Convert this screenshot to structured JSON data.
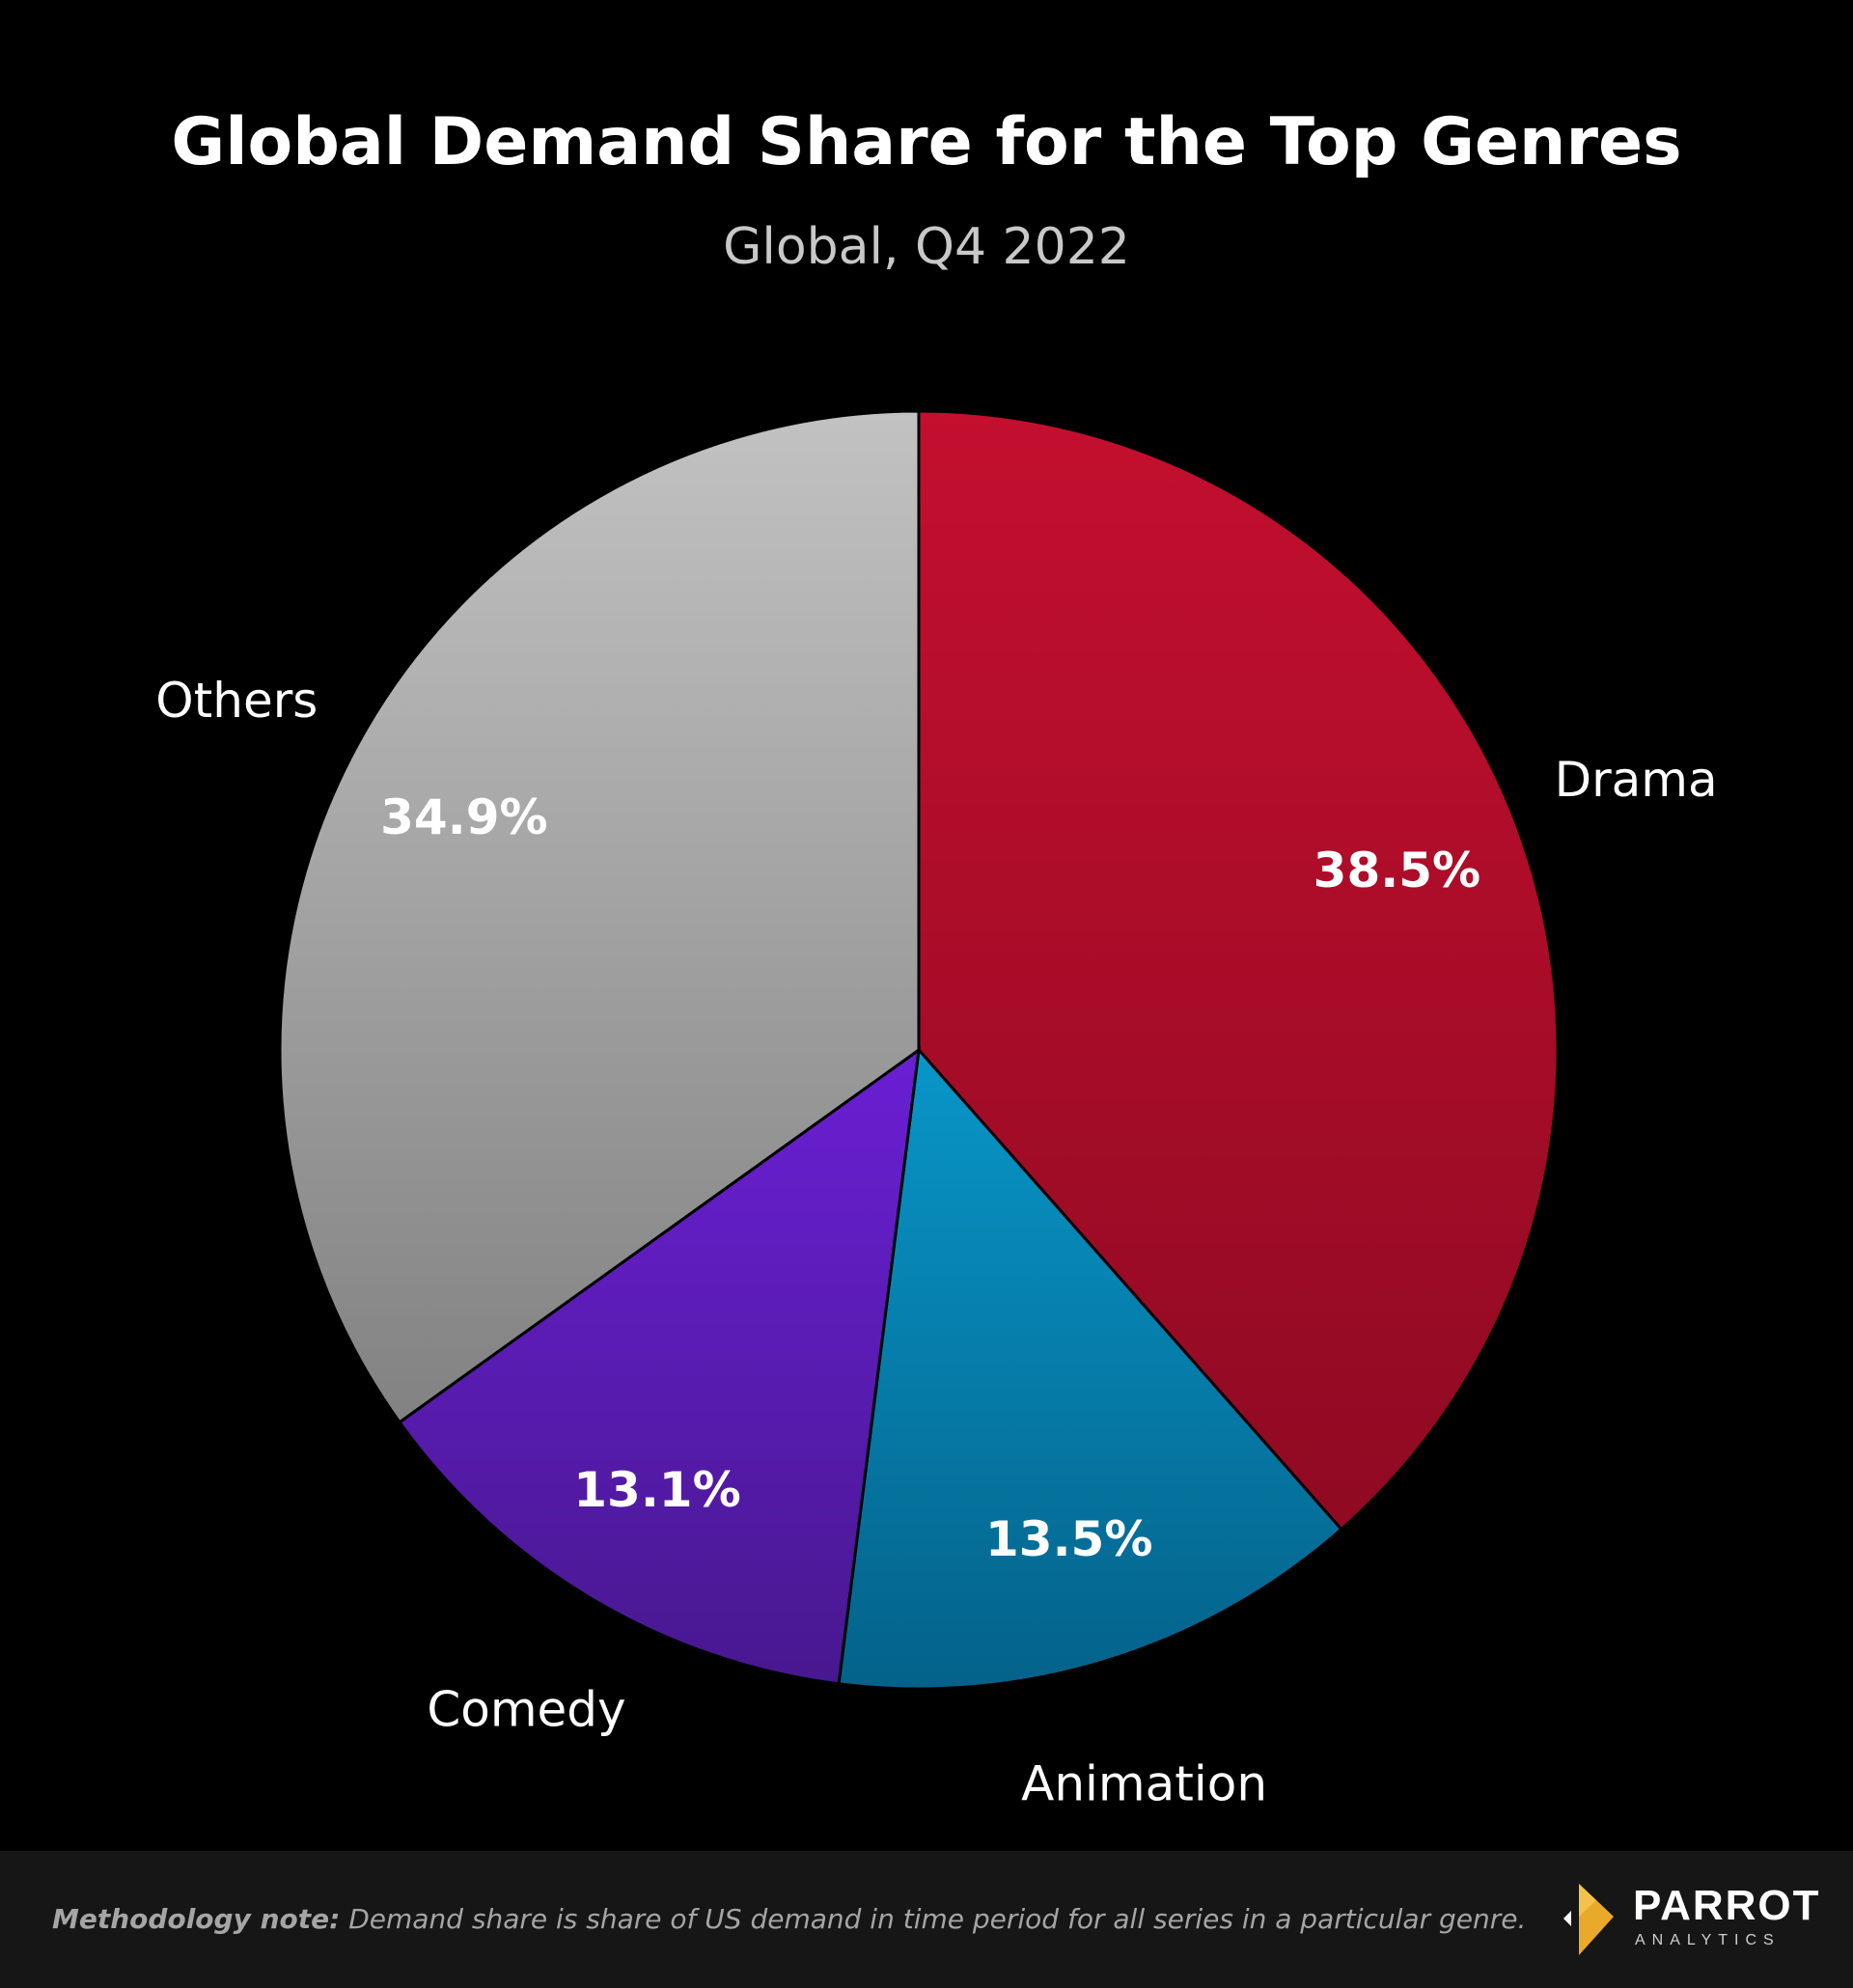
{
  "chart_data": {
    "type": "pie",
    "title": "Global Demand Share for the Top Genres",
    "subtitle": "Global, Q4 2022",
    "start_angle_deg": 0,
    "direction": "clockwise",
    "slices": [
      {
        "label": "Drama",
        "value": 38.5,
        "value_label": "38.5%",
        "color_top": "#c40f2f",
        "color_bottom": "#8f0a22"
      },
      {
        "label": "Animation",
        "value": 13.5,
        "value_label": "13.5%",
        "color_top": "#0896c8",
        "color_bottom": "#04628a"
      },
      {
        "label": "Comedy",
        "value": 13.1,
        "value_label": "13.1%",
        "color_top": "#6a1fd4",
        "color_bottom": "#48188f"
      },
      {
        "label": "Others",
        "value": 34.9,
        "value_label": "34.9%",
        "color_top": "#c2c2c2",
        "color_bottom": "#828282"
      }
    ]
  },
  "footer": {
    "note_label": "Methodology note:",
    "note_text": "Demand share is share of US demand in time period for all series in a particular genre.",
    "brand_name": "PARROT",
    "brand_sub": "ANALYTICS"
  }
}
